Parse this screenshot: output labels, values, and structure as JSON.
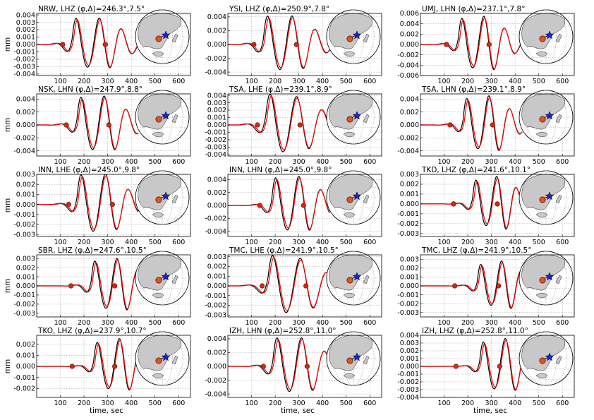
{
  "chart_data": {
    "type": "line",
    "xlabel": "time, sec",
    "ylabel": "mm",
    "xlim": [
      0,
      650
    ],
    "xticks": [
      100,
      200,
      300,
      400,
      500,
      600
    ],
    "grid": true,
    "series_colors": {
      "observed": "#000000",
      "synthetic": "#ff0000"
    },
    "marker_color": "#d02a10",
    "map_colors": {
      "land": "#c8c8c8",
      "ocean": "#ffffff",
      "event": "#1a24d6",
      "station": "#e8501e"
    },
    "map_icons": [
      "globe-map",
      "star-event-marker",
      "station-dot"
    ],
    "panels": [
      {
        "station": "NRW",
        "channel": "LHZ",
        "title": "NRW, LHZ (φ,Δ)=246.3°,7.5°",
        "ylim": [
          -0.0042,
          0.0042
        ],
        "yticks": [
          "0.004",
          "0.003",
          "0.002",
          "0.001",
          "0.000",
          "-0.001",
          "-0.002",
          "-0.003",
          "-0.004"
        ],
        "markers": [
          [
            110,
            0
          ],
          [
            290,
            0
          ]
        ],
        "wave": {
          "start": 150,
          "amp": 0.0036,
          "period": 95,
          "offset": 0.35,
          "decay": 150
        }
      },
      {
        "station": "YSI",
        "channel": "LHZ",
        "title": "YSI, LHZ (φ,Δ)=250.9°,7.8°",
        "ylim": [
          -0.0045,
          0.0045
        ],
        "yticks": [
          "0.004",
          "0.002",
          "0.000",
          "-0.002",
          "-0.004"
        ],
        "markers": [
          [
            110,
            0
          ],
          [
            290,
            0
          ]
        ],
        "wave": {
          "start": 150,
          "amp": 0.0042,
          "period": 100,
          "offset": 0.3,
          "decay": 150
        }
      },
      {
        "station": "UMJ",
        "channel": "LHN",
        "title": "UMJ, LHN (φ,Δ)=237.1°,7.8°",
        "ylim": [
          -0.006,
          0.006
        ],
        "yticks": [
          "0.006",
          "0.004",
          "0.002",
          "0.000",
          "-0.002",
          "-0.004",
          "-0.006"
        ],
        "markers": [
          [
            110,
            0
          ],
          [
            290,
            0
          ]
        ],
        "wave": {
          "start": 160,
          "amp": 0.0055,
          "period": 90,
          "offset": 0.4,
          "decay": 130
        }
      },
      {
        "station": "NSK",
        "channel": "LHN",
        "title": "NSK, LHN (φ,Δ)=247.9°,8.8°",
        "ylim": [
          -0.0048,
          0.0048
        ],
        "yticks": [
          "0.004",
          "0.002",
          "0.000",
          "-0.002",
          "-0.004"
        ],
        "markers": [
          [
            125,
            0
          ],
          [
            305,
            0
          ]
        ],
        "wave": {
          "start": 170,
          "amp": 0.0045,
          "period": 95,
          "offset": 0.3,
          "decay": 140
        }
      },
      {
        "station": "TSA",
        "channel": "LHE",
        "title": "TSA, LHE (φ,Δ)=239.1°,8.9°",
        "ylim": [
          -0.0042,
          0.0042
        ],
        "yticks": [
          "0.004",
          "0.003",
          "0.002",
          "0.001",
          "0.000",
          "-0.001",
          "-0.002",
          "-0.003",
          "-0.004"
        ],
        "markers": [
          [
            125,
            0
          ],
          [
            305,
            0
          ]
        ],
        "wave": {
          "start": 160,
          "amp": 0.004,
          "period": 110,
          "offset": 0.45,
          "decay": 170
        }
      },
      {
        "station": "TSA",
        "channel": "LHN",
        "title": "TSA, LHN (φ,Δ)=239.1°,8.9°",
        "ylim": [
          -0.0048,
          0.0048
        ],
        "yticks": [
          "0.004",
          "0.002",
          "0.000",
          "-0.002",
          "-0.004"
        ],
        "markers": [
          [
            125,
            0
          ],
          [
            305,
            0
          ]
        ],
        "wave": {
          "start": 180,
          "amp": 0.0045,
          "period": 90,
          "offset": 0.3,
          "decay": 130
        }
      },
      {
        "station": "INN",
        "channel": "LHE",
        "title": "INN, LHE (φ,Δ)=245.0°,9.8°",
        "ylim": [
          -0.0032,
          0.003
        ],
        "yticks": [
          "0.003",
          "0.002",
          "0.001",
          "0.000",
          "-0.001",
          "-0.002",
          "-0.003"
        ],
        "markers": [
          [
            135,
            0
          ],
          [
            320,
            0
          ]
        ],
        "wave": {
          "start": 170,
          "amp": 0.0031,
          "period": 100,
          "offset": 0.35,
          "decay": 140
        }
      },
      {
        "station": "INN",
        "channel": "LHN",
        "title": "INN, LHN (φ,Δ)=245.0°,9.8°",
        "ylim": [
          -0.0048,
          0.0048
        ],
        "yticks": [
          "0.004",
          "0.002",
          "0.000",
          "-0.002",
          "-0.004"
        ],
        "markers": [
          [
            135,
            0
          ],
          [
            320,
            0
          ]
        ],
        "wave": {
          "start": 185,
          "amp": 0.0045,
          "period": 95,
          "offset": 0.3,
          "decay": 140
        }
      },
      {
        "station": "TKD",
        "channel": "LHZ",
        "title": "TKD, LHZ (φ,Δ)=241.6°,10.1°",
        "ylim": [
          -0.0033,
          0.003
        ],
        "yticks": [
          "0.003",
          "0.002",
          "0.001",
          "0.000",
          "-0.001",
          "-0.002",
          "-0.003"
        ],
        "markers": [
          [
            140,
            0
          ],
          [
            325,
            0
          ]
        ],
        "wave": {
          "start": 220,
          "amp": 0.0028,
          "period": 85,
          "offset": 0.4,
          "decay": 120
        }
      },
      {
        "station": "SBR",
        "channel": "LHZ",
        "title": "SBR, LHZ (φ,Δ)=247.6°,10.5°",
        "ylim": [
          -0.0034,
          0.0034
        ],
        "yticks": [
          "0.003",
          "0.002",
          "0.001",
          "0.000",
          "-0.001",
          "-0.002",
          "-0.003"
        ],
        "markers": [
          [
            145,
            0
          ],
          [
            330,
            0
          ]
        ],
        "wave": {
          "start": 230,
          "amp": 0.003,
          "period": 90,
          "offset": 0.3,
          "decay": 130
        }
      },
      {
        "station": "TMC",
        "channel": "LHE",
        "title": "TMC, LHE (φ,Δ)=241.9°,10.5°",
        "ylim": [
          -0.0032,
          0.0032
        ],
        "yticks": [
          "0.003",
          "0.002",
          "0.001",
          "0.000",
          "-0.001",
          "-0.002",
          "-0.003"
        ],
        "markers": [
          [
            145,
            0
          ],
          [
            330,
            0
          ]
        ],
        "wave": {
          "start": 170,
          "amp": 0.003,
          "period": 115,
          "offset": 0.45,
          "decay": 170
        }
      },
      {
        "station": "TMC",
        "channel": "LHZ",
        "title": "TMC, LHZ (φ,Δ)=241.9°,10.5°",
        "ylim": [
          -0.0035,
          0.0035
        ],
        "yticks": [
          "0.003",
          "0.002",
          "0.001",
          "0.000",
          "-0.001",
          "-0.002",
          "-0.003"
        ],
        "markers": [
          [
            145,
            0
          ],
          [
            330,
            0
          ]
        ],
        "wave": {
          "start": 240,
          "amp": 0.0028,
          "period": 85,
          "offset": 0.35,
          "decay": 120
        }
      },
      {
        "station": "TKO",
        "channel": "LHZ",
        "title": "TKO, LHZ (φ,Δ)=237.9°,10.7°",
        "ylim": [
          -0.0028,
          0.0028
        ],
        "yticks": [
          "0.002",
          "0.001",
          "0.000",
          "-0.001",
          "-0.002"
        ],
        "markers": [
          [
            150,
            0
          ],
          [
            330,
            0
          ]
        ],
        "wave": {
          "start": 240,
          "amp": 0.0025,
          "period": 90,
          "offset": 0.3,
          "decay": 120
        }
      },
      {
        "station": "IZH",
        "channel": "LHN",
        "title": "IZH, LHN (φ,Δ)=252.8°,11.0°",
        "ylim": [
          -0.0045,
          0.0045
        ],
        "yticks": [
          "0.004",
          "0.002",
          "0.000",
          "-0.002",
          "-0.004"
        ],
        "markers": [
          [
            150,
            0
          ],
          [
            335,
            0
          ]
        ],
        "wave": {
          "start": 190,
          "amp": 0.0042,
          "period": 100,
          "offset": 0.3,
          "decay": 150
        }
      },
      {
        "station": "IZH",
        "channel": "LHZ",
        "title": "IZH, LHZ (φ,Δ)=252.8°,11.0°",
        "ylim": [
          -0.004,
          0.004
        ],
        "yticks": [
          "0.004",
          "0.003",
          "0.002",
          "0.001",
          "0.000",
          "-0.001",
          "-0.002",
          "-0.003",
          "-0.004"
        ],
        "markers": [
          [
            150,
            0
          ],
          [
            335,
            0
          ]
        ],
        "wave": {
          "start": 250,
          "amp": 0.0036,
          "period": 90,
          "offset": 0.35,
          "decay": 120
        }
      }
    ]
  }
}
